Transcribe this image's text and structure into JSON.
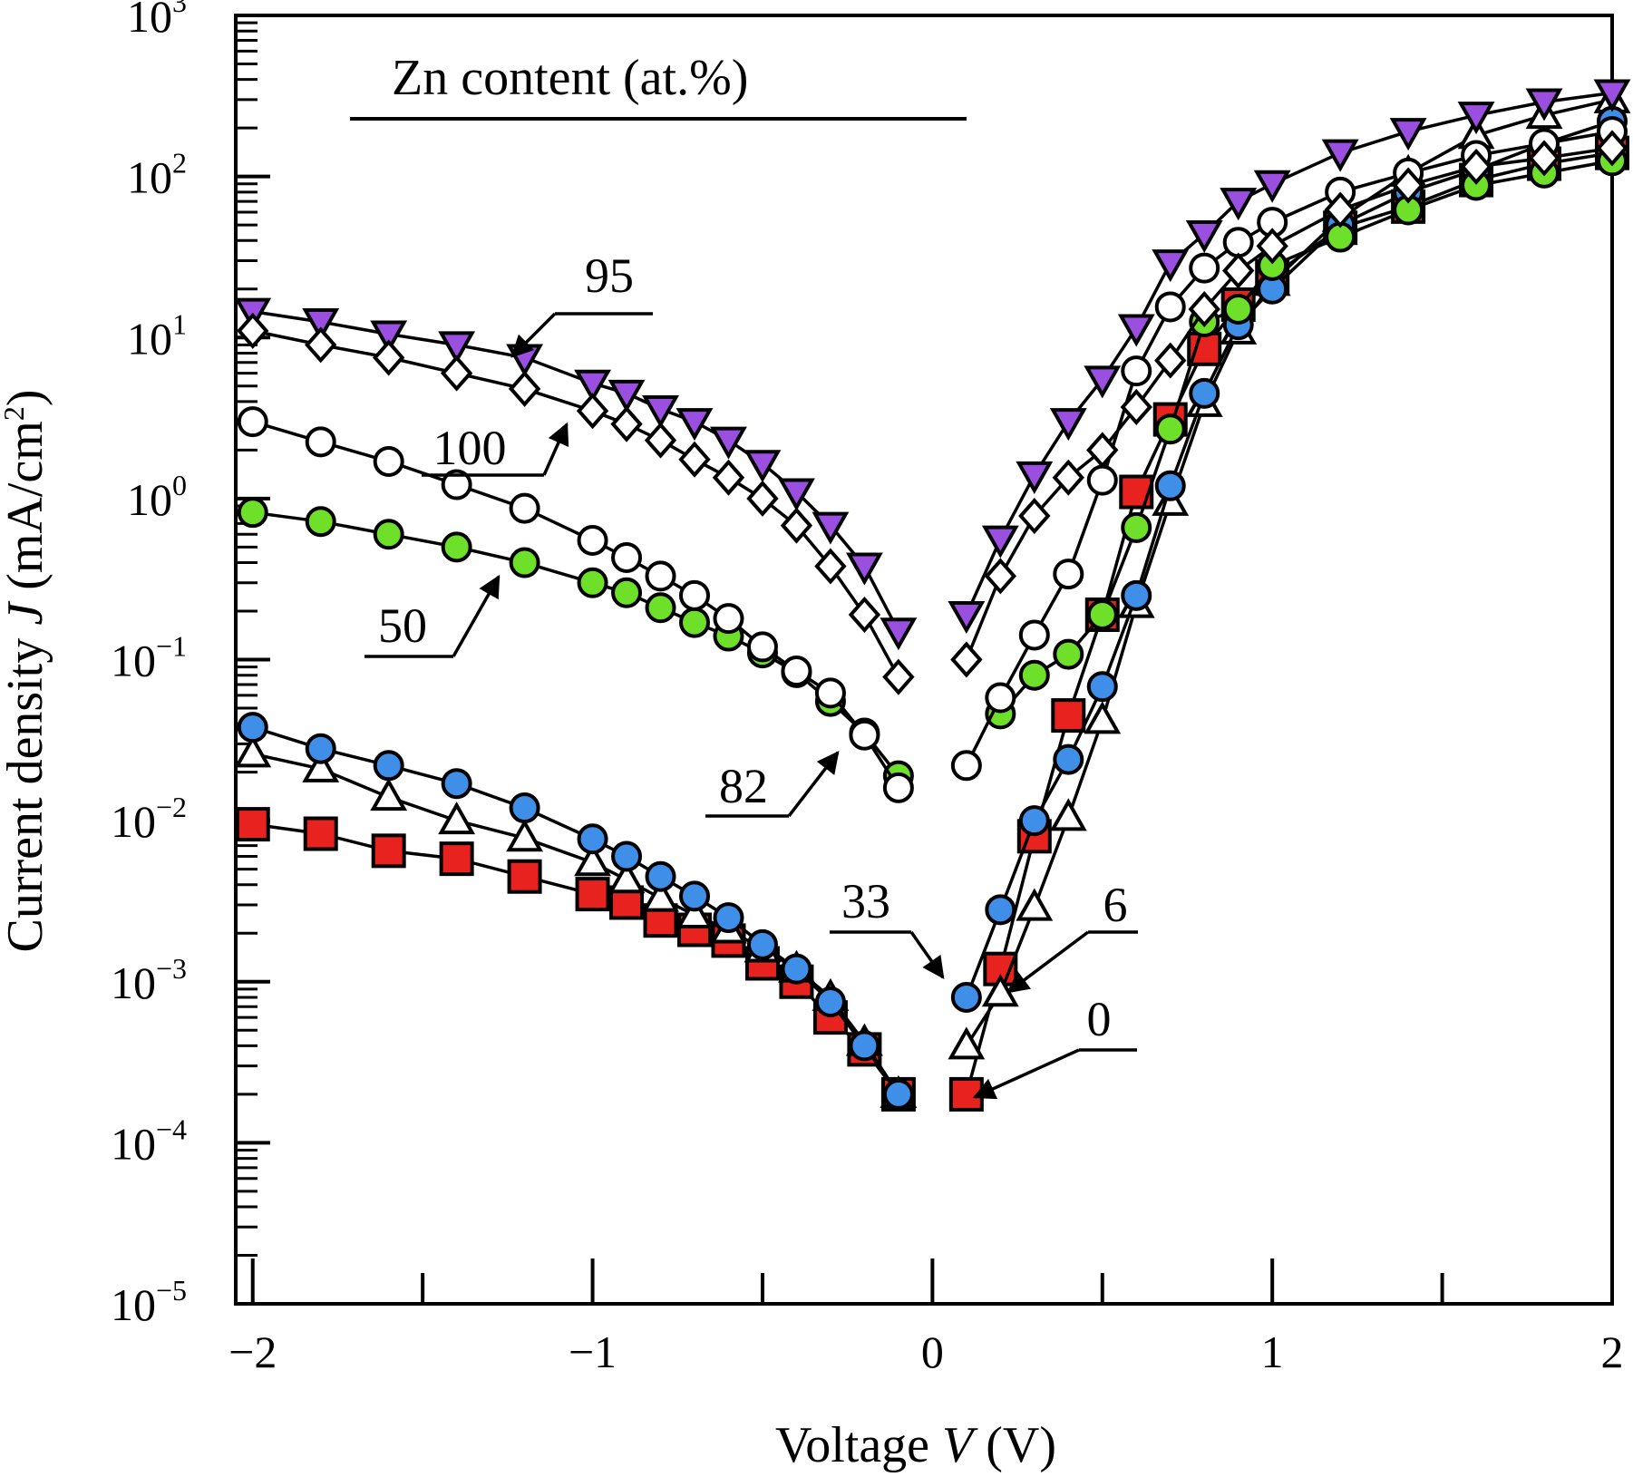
{
  "chart_data": {
    "type": "scatter",
    "title": "",
    "xlabel": "Voltage V (V)",
    "xlabel_parts": [
      "Voltage ",
      "V",
      " (V)"
    ],
    "ylabel": "Current density J (mA/cm²)",
    "ylabel_parts": [
      "Current density ",
      "J",
      " (mA/cm",
      "2",
      ")"
    ],
    "xlim": [
      -2.05,
      2.0
    ],
    "ylim": [
      -5,
      3
    ],
    "y_scale": "log",
    "x_ticks": [
      -2,
      -1,
      0,
      1,
      2
    ],
    "x_tick_labels": [
      "−2",
      "−1",
      "0",
      "1",
      "2"
    ],
    "y_ticks": [
      -5,
      -4,
      -3,
      -2,
      -1,
      0,
      1,
      2,
      3
    ],
    "y_tick_bases": [
      "10",
      "10",
      "10",
      "10",
      "10",
      "10",
      "10",
      "10",
      "10"
    ],
    "y_tick_exponents": [
      "−5",
      "−4",
      "−3",
      "−2",
      "−1",
      "0",
      "1",
      "2",
      "3"
    ],
    "grid": false,
    "legend_title": "Zn content (at.%)",
    "series": [
      {
        "name": "0",
        "marker": "square",
        "color": "#e8231f",
        "x": [
          -2.0,
          -1.8,
          -1.6,
          -1.4,
          -1.2,
          -1.0,
          -0.9,
          -0.8,
          -0.7,
          -0.6,
          -0.5,
          -0.4,
          -0.3,
          -0.2,
          -0.1,
          0.1,
          0.2,
          0.3,
          0.4,
          0.5,
          0.6,
          0.7,
          0.8,
          0.9,
          1.0,
          1.2,
          1.4,
          1.6,
          1.8,
          2.0
        ],
        "y": [
          0.0095,
          0.0083,
          0.0065,
          0.0058,
          0.0045,
          0.0035,
          0.0031,
          0.0024,
          0.0021,
          0.0018,
          0.0013,
          0.001,
          0.0006,
          0.00038,
          0.0002,
          0.0002,
          0.0012,
          0.008,
          0.045,
          0.19,
          1.1,
          3.1,
          8.5,
          16.0,
          24.0,
          48.0,
          65.0,
          95.0,
          120.0,
          140.0
        ]
      },
      {
        "name": "6",
        "marker": "triangle-up",
        "color": "#ffffff",
        "x": [
          -2.0,
          -1.8,
          -1.6,
          -1.4,
          -1.2,
          -1.0,
          -0.9,
          -0.8,
          -0.7,
          -0.6,
          -0.5,
          -0.4,
          -0.3,
          -0.2,
          -0.1,
          0.1,
          0.2,
          0.3,
          0.4,
          0.5,
          0.6,
          0.7,
          0.8,
          0.9,
          1.0,
          1.2,
          1.4,
          1.6,
          1.8,
          2.0
        ],
        "y": [
          0.026,
          0.021,
          0.014,
          0.01,
          0.0078,
          0.0055,
          0.0043,
          0.0033,
          0.0026,
          0.0021,
          0.0016,
          0.0012,
          0.0008,
          0.00042,
          0.0002,
          0.0004,
          0.00085,
          0.0029,
          0.0105,
          0.042,
          0.22,
          0.95,
          3.9,
          11.0,
          22.0,
          55.0,
          105.0,
          180.0,
          240.0,
          300.0
        ]
      },
      {
        "name": "33",
        "marker": "circle",
        "color": "#3f8fe8",
        "x": [
          -2.0,
          -1.8,
          -1.6,
          -1.4,
          -1.2,
          -1.0,
          -0.9,
          -0.8,
          -0.7,
          -0.6,
          -0.5,
          -0.4,
          -0.3,
          -0.2,
          -0.1,
          0.1,
          0.2,
          0.3,
          0.4,
          0.5,
          0.6,
          0.7,
          0.8,
          0.9,
          1.0,
          1.2,
          1.4,
          1.6,
          1.8,
          2.0
        ],
        "y": [
          0.038,
          0.028,
          0.022,
          0.017,
          0.012,
          0.0077,
          0.006,
          0.0045,
          0.0034,
          0.0025,
          0.0017,
          0.0012,
          0.00075,
          0.0004,
          0.0002,
          0.0008,
          0.0028,
          0.01,
          0.024,
          0.068,
          0.25,
          1.2,
          4.5,
          12.0,
          20.0,
          50.0,
          80.0,
          110.0,
          160.0,
          220.0
        ]
      },
      {
        "name": "50",
        "marker": "circle",
        "color": "#6ee02a",
        "x": [
          -2.0,
          -1.8,
          -1.6,
          -1.4,
          -1.2,
          -1.0,
          -0.9,
          -0.8,
          -0.7,
          -0.6,
          -0.5,
          -0.4,
          -0.3,
          -0.2,
          -0.1,
          0.2,
          0.3,
          0.4,
          0.5,
          0.6,
          0.7,
          0.8,
          0.9,
          1.0,
          1.2,
          1.4,
          1.6,
          1.8,
          2.0
        ],
        "y": [
          0.82,
          0.72,
          0.6,
          0.5,
          0.4,
          0.3,
          0.26,
          0.21,
          0.17,
          0.14,
          0.11,
          0.083,
          0.055,
          0.035,
          0.019,
          0.046,
          0.08,
          0.108,
          0.19,
          0.66,
          2.7,
          12.5,
          15.0,
          28.0,
          42.0,
          62.0,
          88.0,
          105.0,
          125.0
        ]
      },
      {
        "name": "82",
        "marker": "circle",
        "color": "#ffffff",
        "x": [
          -2.0,
          -1.8,
          -1.6,
          -1.4,
          -1.2,
          -1.0,
          -0.9,
          -0.8,
          -0.7,
          -0.6,
          -0.5,
          -0.4,
          -0.3,
          -0.2,
          -0.1,
          0.1,
          0.2,
          0.3,
          0.4,
          0.5,
          0.6,
          0.7,
          0.8,
          0.9,
          1.0,
          1.2,
          1.4,
          1.6,
          1.8,
          2.0
        ],
        "y": [
          3.0,
          2.25,
          1.7,
          1.22,
          0.87,
          0.55,
          0.43,
          0.33,
          0.25,
          0.18,
          0.12,
          0.085,
          0.062,
          0.034,
          0.016,
          0.022,
          0.058,
          0.142,
          0.34,
          1.3,
          6.2,
          15.5,
          27.0,
          39.0,
          52.0,
          80.0,
          105.0,
          135.0,
          160.0,
          190.0
        ]
      },
      {
        "name": "95",
        "marker": "triangle-down",
        "color": "#9a4fe0",
        "x": [
          -2.0,
          -1.8,
          -1.6,
          -1.4,
          -1.2,
          -1.0,
          -0.9,
          -0.8,
          -0.7,
          -0.6,
          -0.5,
          -0.4,
          -0.3,
          -0.2,
          -0.1,
          0.1,
          0.2,
          0.3,
          0.4,
          0.5,
          0.6,
          0.7,
          0.8,
          0.9,
          1.0,
          1.2,
          1.4,
          1.6,
          1.8,
          2.0
        ],
        "y": [
          14.5,
          12.5,
          10.5,
          9.0,
          7.5,
          5.2,
          4.5,
          3.6,
          3.0,
          2.3,
          1.65,
          1.1,
          0.68,
          0.38,
          0.15,
          0.19,
          0.56,
          1.4,
          3.0,
          5.5,
          11.5,
          29.0,
          44.0,
          70.0,
          90.0,
          140.0,
          190.0,
          240.0,
          290.0,
          330.0
        ]
      },
      {
        "name": "100",
        "marker": "diamond",
        "color": "#ffffff",
        "x": [
          -2.0,
          -1.8,
          -1.6,
          -1.4,
          -1.2,
          -1.0,
          -0.9,
          -0.8,
          -0.7,
          -0.6,
          -0.5,
          -0.4,
          -0.3,
          -0.2,
          -0.1,
          0.1,
          0.2,
          0.3,
          0.4,
          0.5,
          0.6,
          0.7,
          0.8,
          0.9,
          1.0,
          1.2,
          1.4,
          1.6,
          1.8,
          2.0
        ],
        "y": [
          11.0,
          9.0,
          7.5,
          6.0,
          4.8,
          3.5,
          2.9,
          2.3,
          1.75,
          1.35,
          1.0,
          0.68,
          0.38,
          0.19,
          0.078,
          0.1,
          0.33,
          0.78,
          1.35,
          2.0,
          3.7,
          7.2,
          15.0,
          26.0,
          37.0,
          62.0,
          88.0,
          115.0,
          130.0,
          150.0
        ]
      }
    ],
    "annotations": [
      {
        "label": "95",
        "series": "95"
      },
      {
        "label": "100",
        "series": "100"
      },
      {
        "label": "50",
        "series": "50"
      },
      {
        "label": "82",
        "series": "82"
      },
      {
        "label": "33",
        "series": "33"
      },
      {
        "label": "6",
        "series": "6"
      },
      {
        "label": "0",
        "series": "0"
      }
    ]
  }
}
